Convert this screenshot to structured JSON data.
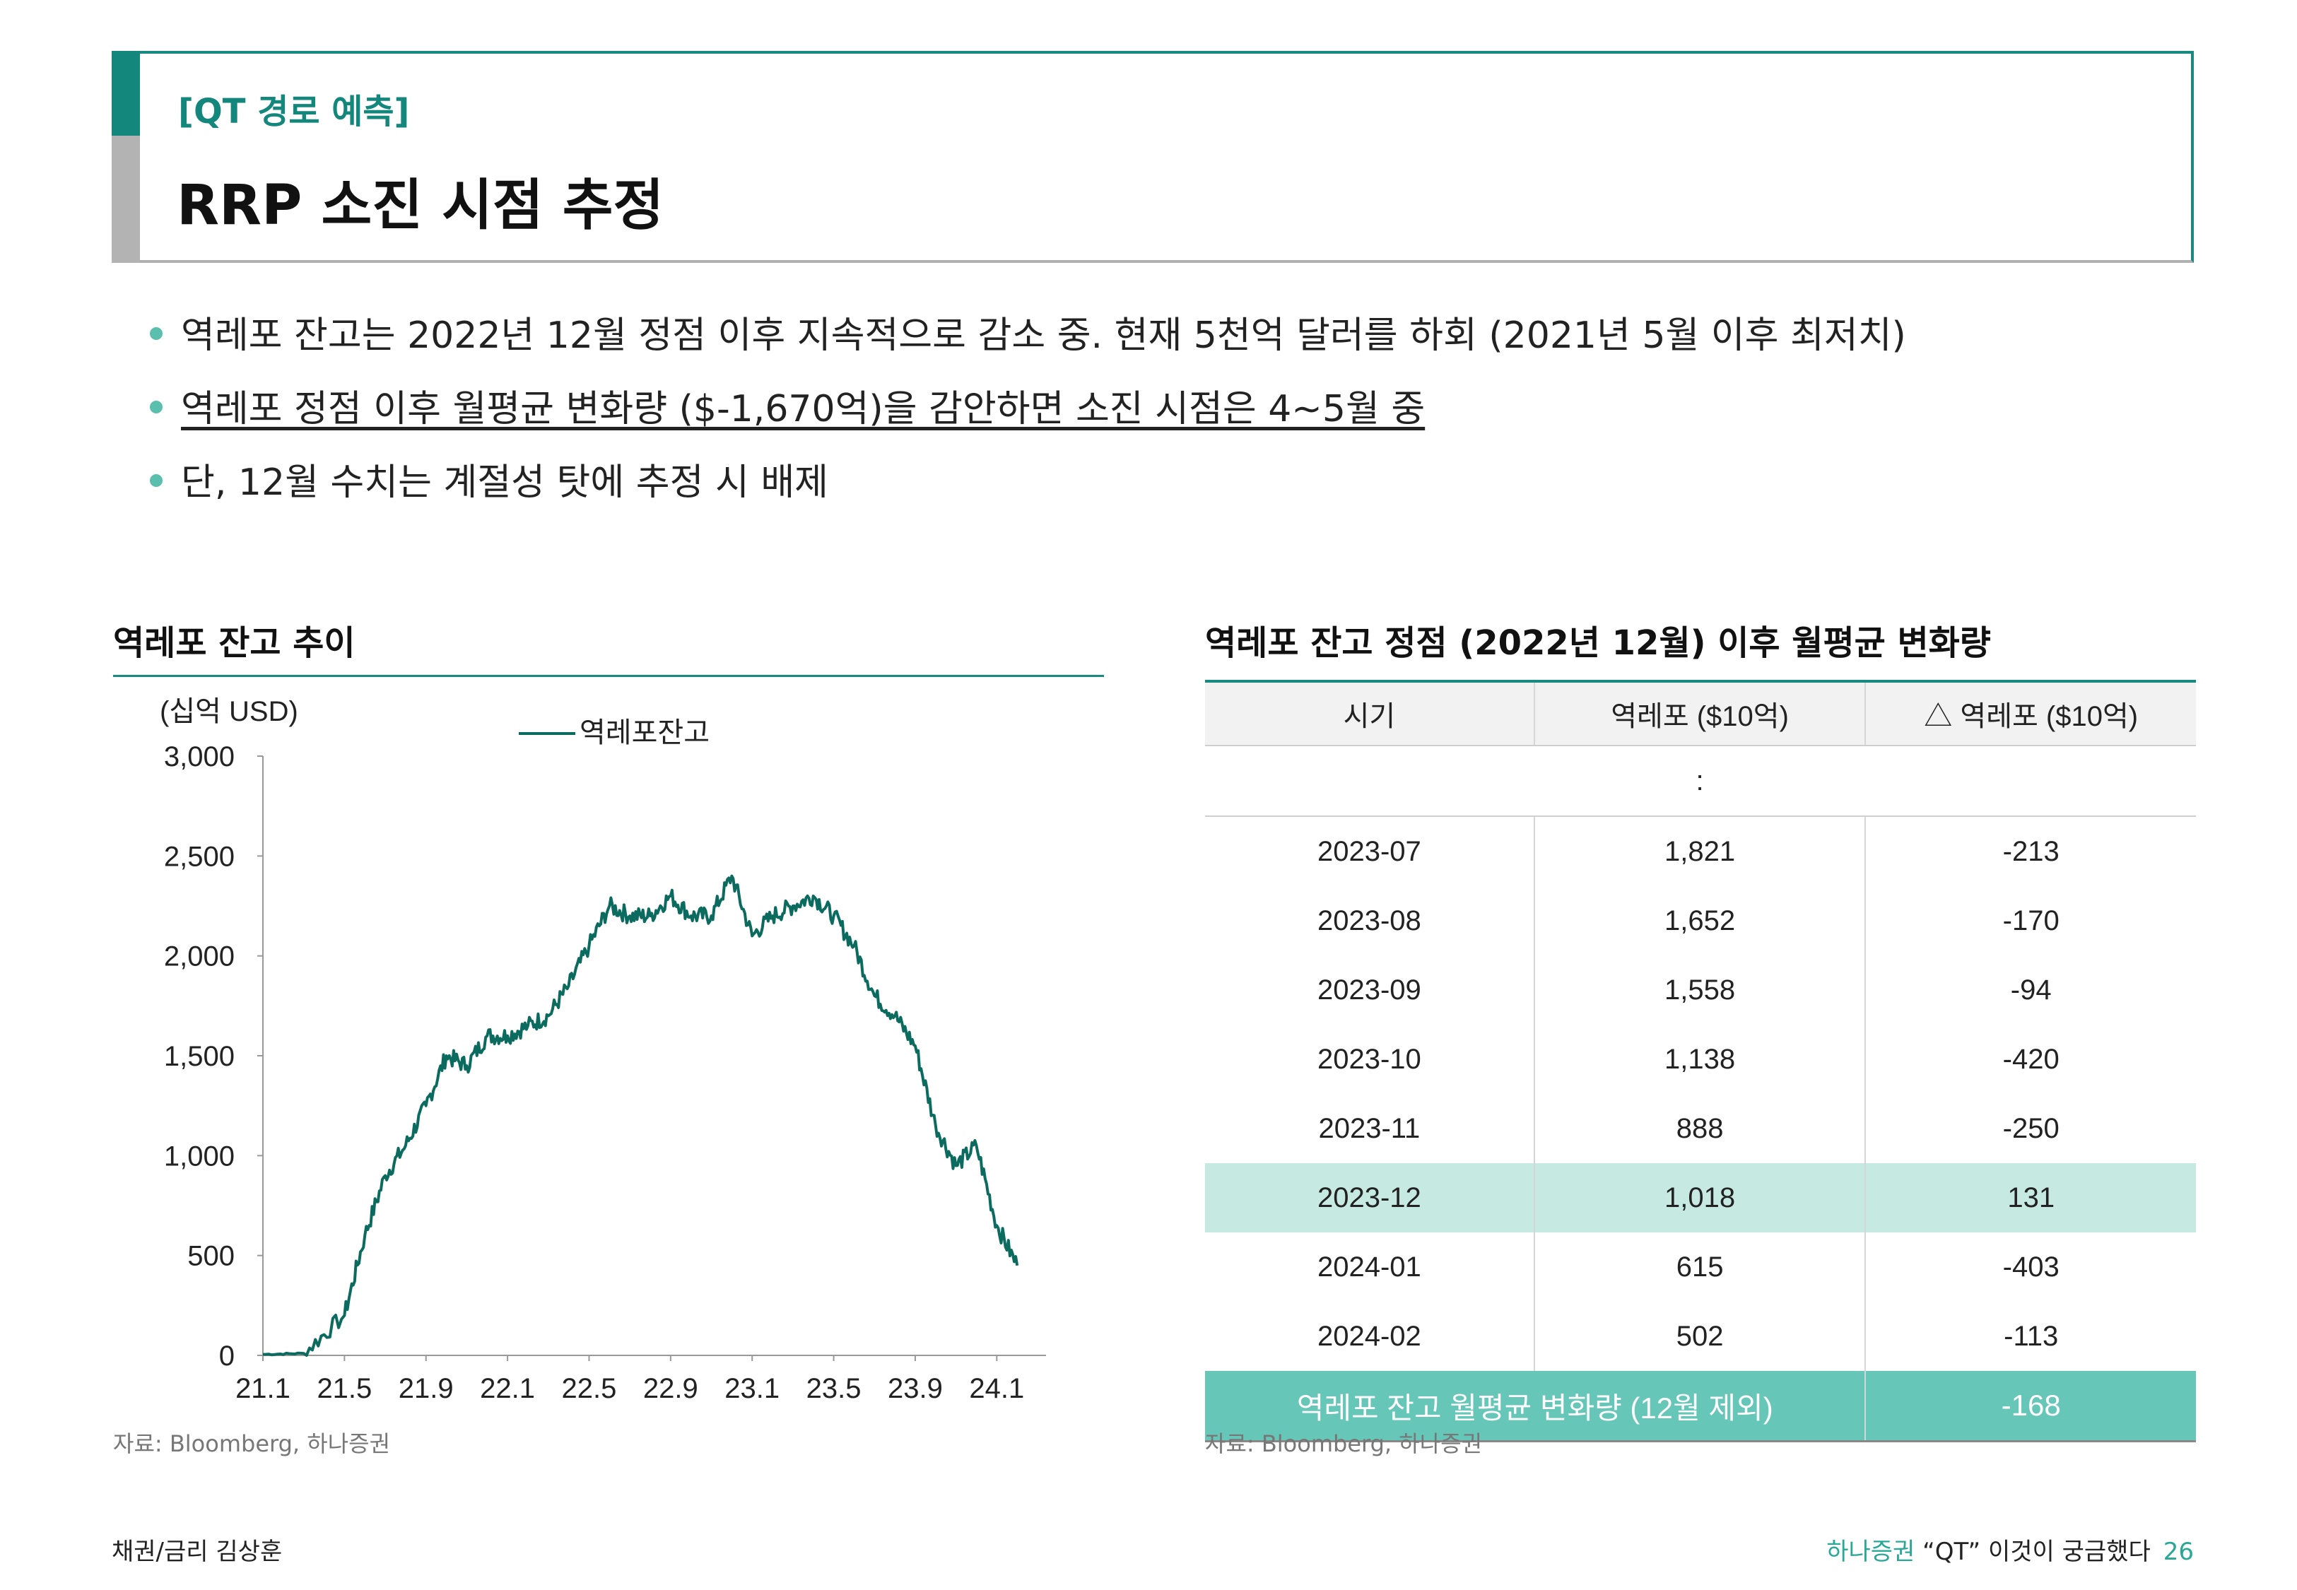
{
  "header": {
    "tag": "[QT 경로 예측]",
    "title": "RRP 소진 시점 추정"
  },
  "bullets": [
    {
      "text": "역레포 잔고는 2022년 12월 정점 이후 지속적으로 감소 중. 현재 5천억 달러를 하회 (2021년 5월 이후 최저치)"
    },
    {
      "text": "역레포 정점 이후 월평균 변화량 ($-1,670억)을 감안하면 소진 시점은 4~5월 중"
    },
    {
      "text": "단, 12월 수치는 계절성 탓에 추정 시 배제"
    }
  ],
  "left_section": {
    "title": "역레포 잔고 추이",
    "source": "자료: Bloomberg, 하나증권"
  },
  "right_section": {
    "title": "역레포 잔고 정점 (2022년 12월) 이후 월평균 변화량",
    "source": "자료: Bloomberg, 하나증권"
  },
  "chart_data": {
    "type": "line",
    "unit_label": "(십억 USD)",
    "series": [
      {
        "name": "역레포잔고",
        "color": "#0b6b5f",
        "x": [
          "21.1",
          "21.3",
          "21.5",
          "21.6",
          "21.7",
          "21.8",
          "21.9",
          "21.10",
          "21.11",
          "21.12",
          "22.1",
          "22.2",
          "22.3",
          "22.4",
          "22.5",
          "22.6",
          "22.7",
          "22.8",
          "22.9",
          "22.10",
          "22.11",
          "22.12",
          "23.1",
          "23.2",
          "23.3",
          "23.4",
          "23.5",
          "23.6",
          "23.7",
          "23.8",
          "23.9",
          "23.10",
          "23.11",
          "23.12",
          "24.1",
          "24.2"
        ],
        "values": [
          5,
          10,
          200,
          600,
          900,
          1050,
          1250,
          1500,
          1450,
          1600,
          1600,
          1650,
          1700,
          1850,
          2050,
          2250,
          2200,
          2200,
          2300,
          2200,
          2200,
          2400,
          2100,
          2200,
          2250,
          2300,
          2200,
          2050,
          1800,
          1700,
          1550,
          1150,
          950,
          1050,
          650,
          450
        ]
      }
    ],
    "y_ticks": [
      "3,000",
      "2,500",
      "2,000",
      "1,500",
      "1,000",
      "500",
      "0"
    ],
    "x_ticks": [
      "21.1",
      "21.5",
      "21.9",
      "22.1",
      "22.5",
      "22.9",
      "23.1",
      "23.5",
      "23.9",
      "24.1"
    ],
    "ylim": [
      0,
      3000
    ]
  },
  "table": {
    "headers": [
      "시기",
      "역레포 ($10억)",
      "△ 역레포 ($10억)"
    ],
    "ellipsis": ":",
    "rows": [
      {
        "period": "2023-07",
        "rrp": "1,821",
        "delta": "-213"
      },
      {
        "period": "2023-08",
        "rrp": "1,652",
        "delta": "-170"
      },
      {
        "period": "2023-09",
        "rrp": "1,558",
        "delta": "-94"
      },
      {
        "period": "2023-10",
        "rrp": "1,138",
        "delta": "-420"
      },
      {
        "period": "2023-11",
        "rrp": "888",
        "delta": "-250"
      },
      {
        "period": "2023-12",
        "rrp": "1,018",
        "delta": "131"
      },
      {
        "period": "2024-01",
        "rrp": "615",
        "delta": "-403"
      },
      {
        "period": "2024-02",
        "rrp": "502",
        "delta": "-113"
      }
    ],
    "summary_label": "역레포 잔고 월평균 변화량 (12월 제외)",
    "summary_value": "-168"
  },
  "footer": {
    "left": "채권/금리 김상훈",
    "brand": "하나증권",
    "report": " “QT” 이것이 궁금했다",
    "page": "26"
  }
}
